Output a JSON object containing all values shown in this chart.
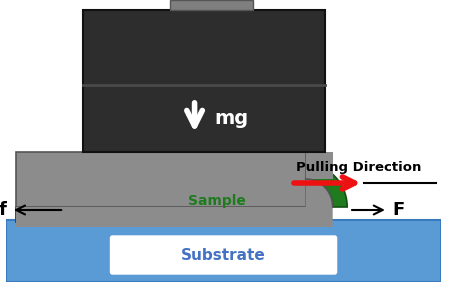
{
  "bg_color": "#ffffff",
  "substrate_color": "#5b9bd5",
  "substrate_edge_color": "#3a7abf",
  "substrate_label_color": "#4472c4",
  "substrate_label": "Substrate",
  "green_color": "#1e7c1e",
  "green_edge_color": "#155015",
  "sample_label_color": "#1e7c1e",
  "sample_label": "Sample",
  "gray_color": "#8c8c8c",
  "gray_edge_color": "#555555",
  "dark_color": "#2d2d2d",
  "dark_edge_color": "#111111",
  "peg_color": "#7f7f7f",
  "mg_label": "mg",
  "mg_color": "#ffffff",
  "arrow_white": "#ffffff",
  "arrow_black": "#000000",
  "arrow_red": "#ee1111",
  "f_label": "f",
  "F_label": "F",
  "pulling_label": "Pulling Direction",
  "pulling_label_color": "#000000",
  "divider_color": "#555555"
}
